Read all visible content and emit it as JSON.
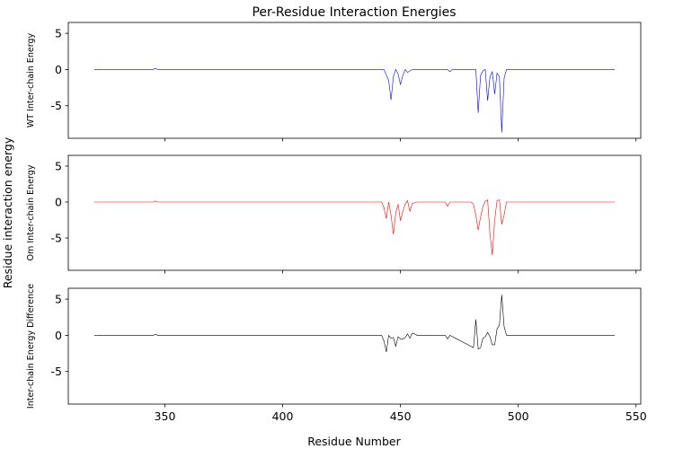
{
  "figure": {
    "title": "Per-Residue Interaction Energies",
    "shared_ylabel": "Residue interaction energy",
    "shared_xlabel": "Residue Number"
  },
  "chart_data": [
    {
      "type": "line",
      "title": "",
      "xlabel": "",
      "ylabel": "WT Inter-chain Energy",
      "color": "#0000ff",
      "xlim": [
        309,
        552
      ],
      "ylim": [
        -9.5,
        6.5
      ],
      "xticks": [
        350,
        400,
        450,
        500,
        550
      ],
      "xtick_labels_visible": false,
      "yticks": [
        -5,
        0,
        5
      ],
      "x": [
        320,
        345,
        346,
        347,
        443,
        445,
        446,
        447,
        448,
        449,
        450,
        451,
        452,
        453,
        455,
        457,
        470,
        471,
        472,
        482,
        483,
        484,
        485,
        486,
        487,
        488,
        489,
        490,
        491,
        492,
        493,
        494,
        495,
        541
      ],
      "values": [
        0,
        0,
        0.15,
        0,
        0,
        -1.5,
        -4.2,
        -1.0,
        0,
        -0.6,
        -2.1,
        -0.8,
        0,
        -0.4,
        0,
        0,
        0,
        -0.3,
        0,
        0,
        -6.0,
        -0.8,
        -0.2,
        0,
        -4.3,
        -1.0,
        -0.3,
        -3.4,
        -0.5,
        -1.0,
        -8.7,
        -1.2,
        0,
        0
      ]
    },
    {
      "type": "line",
      "title": "",
      "xlabel": "",
      "ylabel": "Om Inter-chain Energy",
      "color": "#ff0000",
      "xlim": [
        309,
        552
      ],
      "ylim": [
        -9.5,
        6.5
      ],
      "xticks": [
        350,
        400,
        450,
        500,
        550
      ],
      "xtick_labels_visible": false,
      "yticks": [
        -5,
        0,
        5
      ],
      "x": [
        320,
        345,
        346,
        347,
        442,
        443,
        444,
        445,
        446,
        447,
        448,
        449,
        450,
        451,
        452,
        453,
        454,
        455,
        457,
        469,
        470,
        471,
        480,
        481,
        482,
        483,
        484,
        485,
        486,
        487,
        488,
        489,
        490,
        491,
        492,
        493,
        494,
        495,
        541
      ],
      "values": [
        0,
        0,
        0.15,
        0,
        0,
        -0.8,
        -2.3,
        0,
        -1.8,
        -4.5,
        -1.5,
        -0.3,
        -2.6,
        -1.3,
        -0.3,
        0.2,
        -1.3,
        -0.2,
        0,
        0,
        -0.6,
        0,
        0,
        -0.3,
        -1.8,
        -3.9,
        -2.1,
        -0.6,
        0.1,
        0.3,
        -4.5,
        -7.4,
        -2.5,
        0.2,
        0.3,
        -3.1,
        -1.8,
        0,
        0
      ]
    },
    {
      "type": "line",
      "title": "",
      "xlabel": "Residue Number",
      "ylabel": "Inter-chain Energy Difference",
      "color": "#000000",
      "xlim": [
        309,
        552
      ],
      "ylim": [
        -9.5,
        6.5
      ],
      "xticks": [
        350,
        400,
        450,
        500,
        550
      ],
      "xtick_labels_visible": true,
      "yticks": [
        -5,
        0,
        5
      ],
      "x": [
        320,
        345,
        346,
        347,
        442,
        443,
        444,
        445,
        446,
        447,
        448,
        449,
        450,
        451,
        452,
        453,
        454,
        455,
        456,
        457,
        469,
        470,
        471,
        481,
        482,
        483,
        484,
        485,
        486,
        487,
        488,
        489,
        490,
        491,
        492,
        493,
        494,
        495,
        541
      ],
      "values": [
        0,
        0,
        0.15,
        0,
        0,
        -0.8,
        -2.3,
        0,
        -0.4,
        -0.3,
        -1.5,
        -0.2,
        -0.5,
        -0.5,
        -0.3,
        0.2,
        -0.4,
        0.3,
        0.2,
        0,
        0,
        -0.5,
        0,
        -1.7,
        2.2,
        -1.9,
        -1.7,
        -0.4,
        -0.2,
        0.4,
        -0.2,
        -1.3,
        -1.3,
        0.9,
        1.4,
        5.6,
        1.2,
        0,
        0
      ]
    }
  ]
}
